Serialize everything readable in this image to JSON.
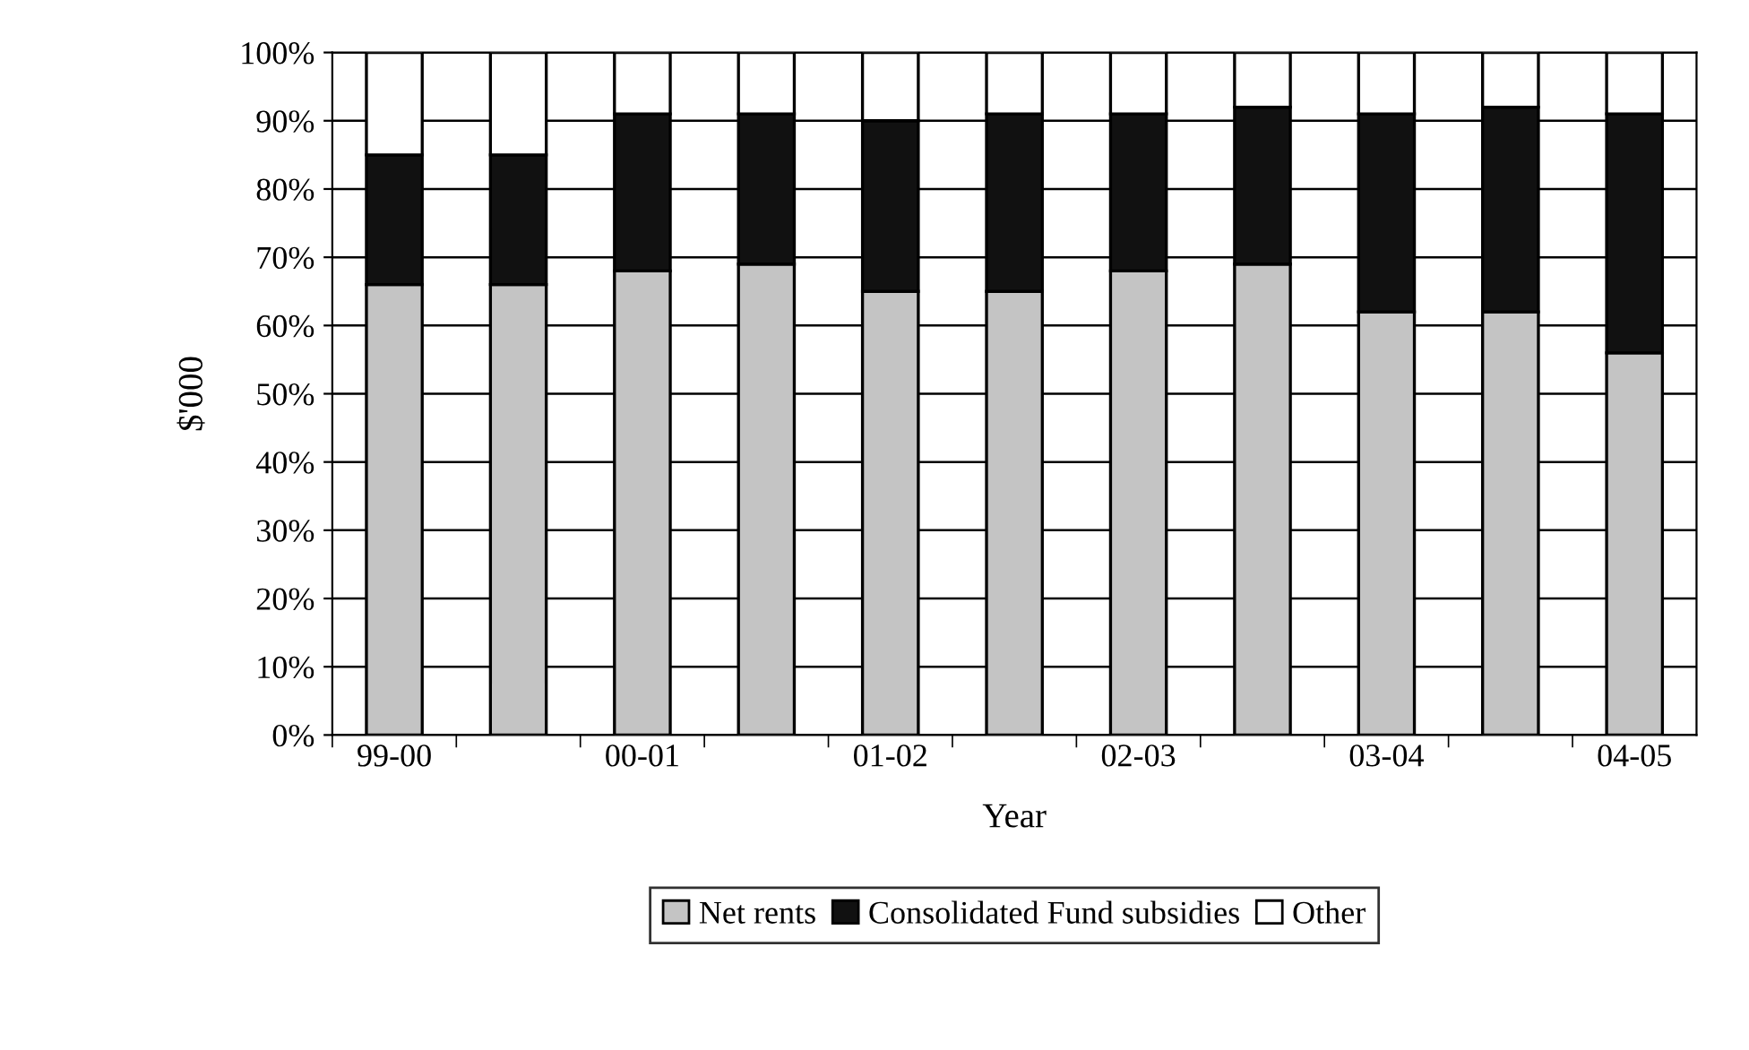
{
  "chart_data": {
    "type": "bar",
    "stacked": true,
    "xlabel": "Year",
    "ylabel": "$'000",
    "categories": [
      "99-00",
      null,
      "00-01",
      null,
      "01-02",
      null,
      "02-03",
      null,
      "03-04",
      null,
      "04-05"
    ],
    "series": [
      {
        "name": "Net rents",
        "color": "#c4c4c4",
        "values": [
          66,
          66,
          68,
          69,
          65,
          65,
          68,
          69,
          62,
          62,
          56
        ]
      },
      {
        "name": "Consolidated Fund subsidies",
        "color": "#111111",
        "values": [
          19,
          19,
          23,
          22,
          25,
          26,
          23,
          23,
          29,
          30,
          35
        ]
      },
      {
        "name": "Other",
        "color": "#ffffff",
        "values": [
          15,
          15,
          9,
          9,
          10,
          9,
          9,
          8,
          9,
          8,
          9
        ]
      }
    ],
    "ylim": [
      0,
      100
    ],
    "yticks": [
      {
        "value": 0,
        "label": "0%"
      },
      {
        "value": 10,
        "label": "10%"
      },
      {
        "value": 20,
        "label": "20%"
      },
      {
        "value": 30,
        "label": "30%"
      },
      {
        "value": 40,
        "label": "40%"
      },
      {
        "value": 50,
        "label": "50%"
      },
      {
        "value": 60,
        "label": "60%"
      },
      {
        "value": 70,
        "label": "70%"
      },
      {
        "value": 80,
        "label": "80%"
      },
      {
        "value": 90,
        "label": "90%"
      },
      {
        "value": 100,
        "label": "100%"
      }
    ],
    "grid": "y",
    "legend": "bottom"
  }
}
